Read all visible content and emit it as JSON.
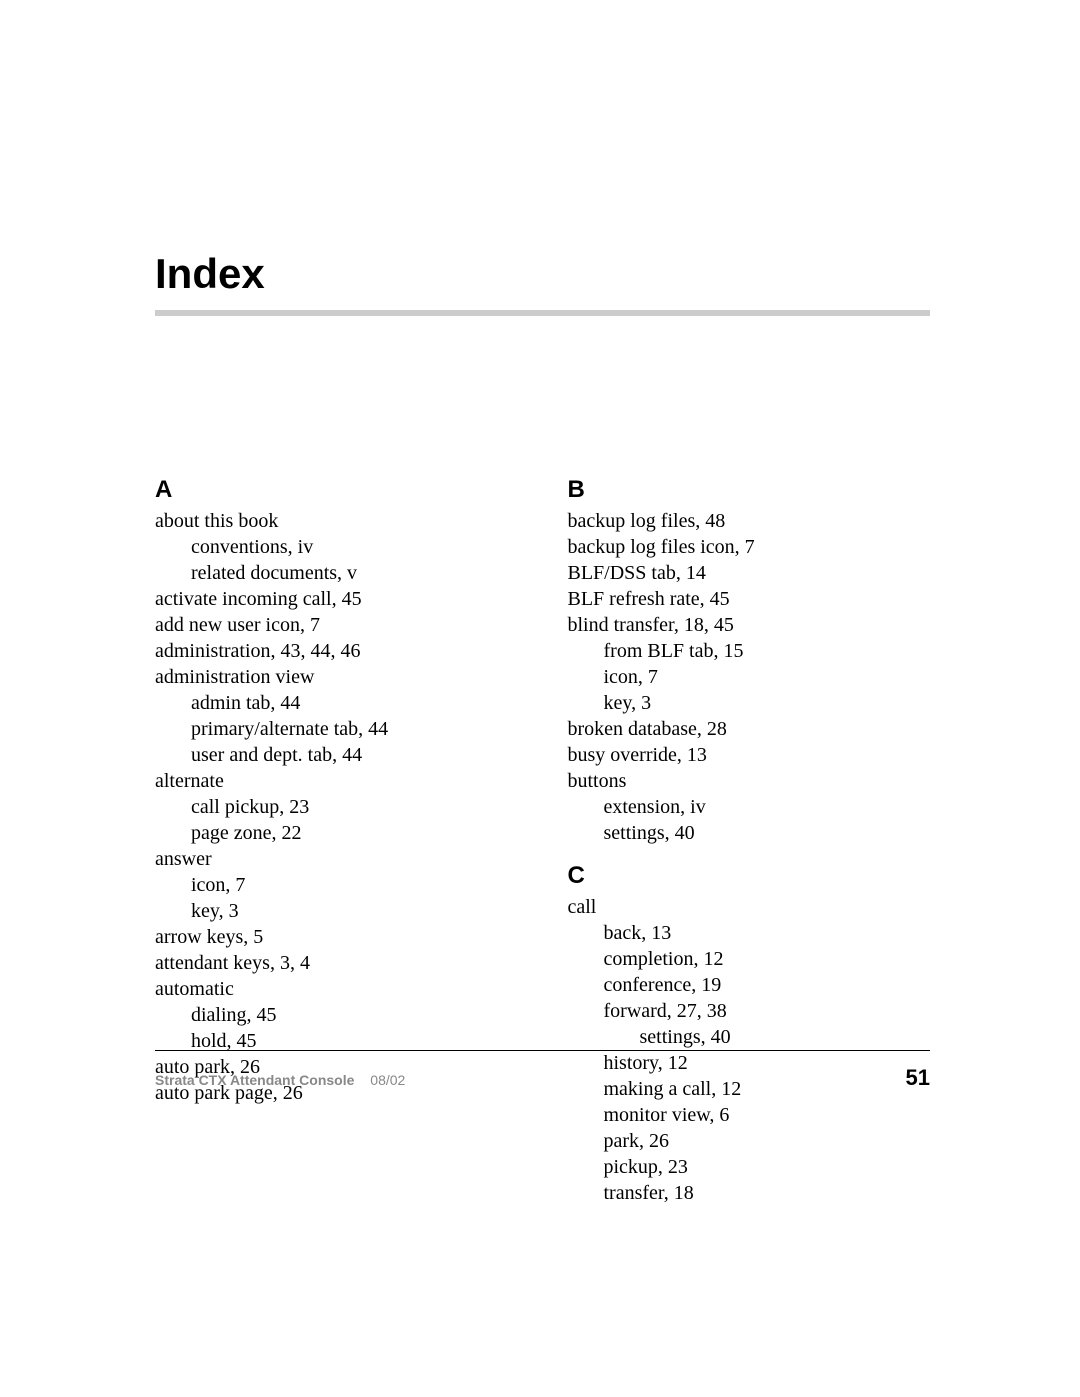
{
  "title": "Index",
  "footer": {
    "doc": "Strata CTX Attendant Console",
    "date": "08/02",
    "page": "51"
  },
  "left": {
    "letter": "A",
    "entries": [
      {
        "lvl": 0,
        "text": "about this book"
      },
      {
        "lvl": 1,
        "text": "conventions,  iv"
      },
      {
        "lvl": 1,
        "text": "related documents,  v"
      },
      {
        "lvl": 0,
        "text": "activate incoming call,  45"
      },
      {
        "lvl": 0,
        "text": "add new user icon,  7"
      },
      {
        "lvl": 0,
        "text": "administration,  43, 44, 46"
      },
      {
        "lvl": 0,
        "text": "administration view"
      },
      {
        "lvl": 1,
        "text": "admin tab,  44"
      },
      {
        "lvl": 1,
        "text": "primary/alternate tab,  44"
      },
      {
        "lvl": 1,
        "text": "user and dept. tab,  44"
      },
      {
        "lvl": 0,
        "text": "alternate"
      },
      {
        "lvl": 1,
        "text": "call pickup,  23"
      },
      {
        "lvl": 1,
        "text": "page zone,  22"
      },
      {
        "lvl": 0,
        "text": "answer"
      },
      {
        "lvl": 1,
        "text": "icon,  7"
      },
      {
        "lvl": 1,
        "text": "key,  3"
      },
      {
        "lvl": 0,
        "text": "arrow keys,  5"
      },
      {
        "lvl": 0,
        "text": "attendant keys,  3, 4"
      },
      {
        "lvl": 0,
        "text": "automatic"
      },
      {
        "lvl": 1,
        "text": "dialing,  45"
      },
      {
        "lvl": 1,
        "text": "hold,  45"
      },
      {
        "lvl": 0,
        "text": "auto park,  26"
      },
      {
        "lvl": 0,
        "text": "auto park page,  26"
      }
    ]
  },
  "right": {
    "sections": [
      {
        "letter": "B",
        "spaced": false,
        "entries": [
          {
            "lvl": 0,
            "text": "backup log files,  48"
          },
          {
            "lvl": 0,
            "text": "backup log files icon,  7"
          },
          {
            "lvl": 0,
            "text": "BLF/DSS tab,  14"
          },
          {
            "lvl": 0,
            "text": "BLF refresh rate,  45"
          },
          {
            "lvl": 0,
            "text": "blind transfer,  18, 45"
          },
          {
            "lvl": 1,
            "text": "from BLF tab,  15"
          },
          {
            "lvl": 1,
            "text": "icon,  7"
          },
          {
            "lvl": 1,
            "text": "key,  3"
          },
          {
            "lvl": 0,
            "text": "broken database,  28"
          },
          {
            "lvl": 0,
            "text": "busy override,  13"
          },
          {
            "lvl": 0,
            "text": "buttons"
          },
          {
            "lvl": 1,
            "text": "extension,  iv"
          },
          {
            "lvl": 1,
            "text": "settings,  40"
          }
        ]
      },
      {
        "letter": "C",
        "spaced": true,
        "entries": [
          {
            "lvl": 0,
            "text": "call"
          },
          {
            "lvl": 1,
            "text": "back,  13"
          },
          {
            "lvl": 1,
            "text": "completion,  12"
          },
          {
            "lvl": 1,
            "text": "conference,  19"
          },
          {
            "lvl": 1,
            "text": "forward,  27, 38"
          },
          {
            "lvl": 2,
            "text": "settings,  40"
          },
          {
            "lvl": 1,
            "text": "history,  12"
          },
          {
            "lvl": 1,
            "text": "making a call,  12"
          },
          {
            "lvl": 1,
            "text": "monitor view,  6"
          },
          {
            "lvl": 1,
            "text": "park,  26"
          },
          {
            "lvl": 1,
            "text": "pickup,  23"
          },
          {
            "lvl": 1,
            "text": "transfer,  18"
          }
        ]
      }
    ]
  }
}
